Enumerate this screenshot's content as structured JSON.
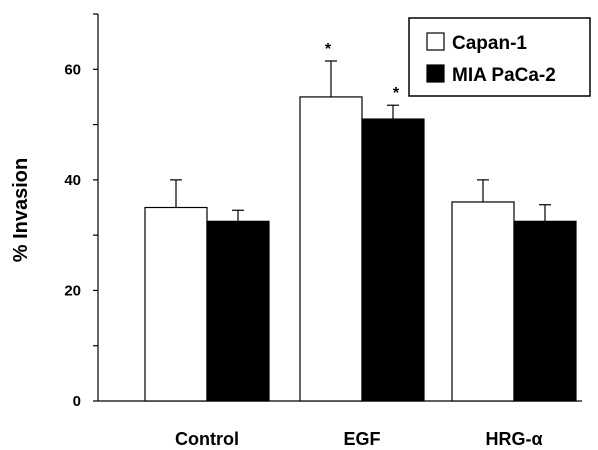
{
  "chart_data": {
    "type": "bar",
    "ylabel": "% Invasion",
    "xlabel": "",
    "ylim": [
      0,
      70
    ],
    "yticks": [
      0,
      20,
      40,
      60
    ],
    "categories": [
      "Control",
      "EGF",
      "HRG-α"
    ],
    "series": [
      {
        "name": "Capan-1",
        "color": "#ffffff",
        "values": [
          35,
          55,
          36
        ],
        "errors": [
          5,
          6.5,
          4
        ],
        "annotations": [
          "",
          "*",
          ""
        ]
      },
      {
        "name": "MIA PaCa-2",
        "color": "#000000",
        "values": [
          32.5,
          51,
          32.5
        ],
        "errors": [
          2,
          2.5,
          3
        ],
        "annotations": [
          "",
          "*",
          ""
        ]
      }
    ],
    "legend": {
      "position": "top-right"
    },
    "grid": false
  }
}
